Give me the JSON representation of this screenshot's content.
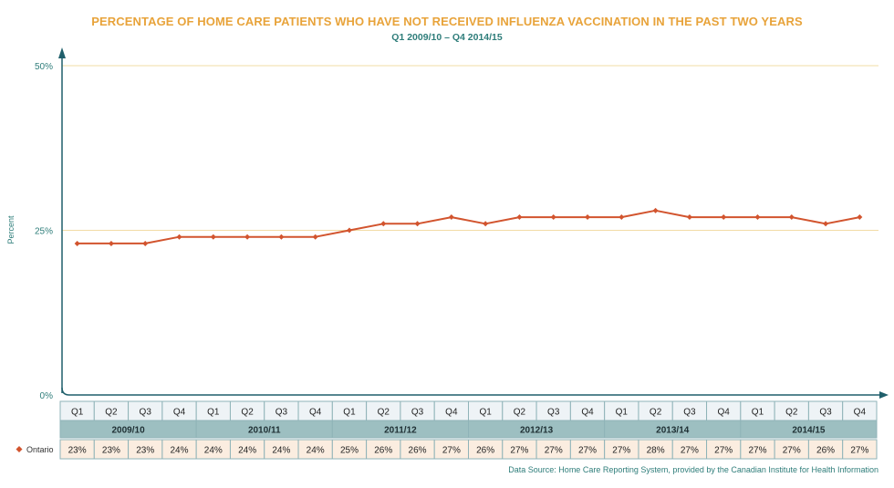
{
  "title": "PERCENTAGE OF HOME CARE PATIENTS WHO HAVE NOT RECEIVED INFLUENZA VACCINATION IN THE PAST TWO YEARS",
  "subtitle": "Q1 2009/10 – Q4 2014/15",
  "source": "Data Source: Home Care Reporting System, provided by the Canadian Institute for Health Information",
  "colors": {
    "title": "#E8A33A",
    "accent": "#2E7D7A",
    "series": "#D2542E",
    "gridline": "#F2DCA6",
    "axis": "#1F5F6B",
    "year_row_bg": "#9DBFC1",
    "value_row_bg": "#FBEDE0",
    "quarter_row_bg": "#EEF3F6"
  },
  "chart_data": {
    "type": "line",
    "title": "PERCENTAGE OF HOME CARE PATIENTS WHO HAVE NOT RECEIVED INFLUENZA VACCINATION IN THE PAST TWO YEARS",
    "subtitle": "Q1 2009/10 – Q4 2014/15",
    "ylabel": "Percent",
    "xlabel": "",
    "ylim": [
      0,
      50
    ],
    "yticks": [
      "0%",
      "25%",
      "50%"
    ],
    "ytick_values": [
      0,
      25,
      50
    ],
    "grid": true,
    "years": [
      "2009/10",
      "2010/11",
      "2011/12",
      "2012/13",
      "2013/14",
      "2014/15"
    ],
    "quarters": [
      "Q1",
      "Q2",
      "Q3",
      "Q4"
    ],
    "series": [
      {
        "name": "Ontario",
        "values": [
          23,
          23,
          23,
          24,
          24,
          24,
          24,
          24,
          25,
          26,
          26,
          27,
          26,
          27,
          27,
          27,
          27,
          28,
          27,
          27,
          27,
          27,
          26,
          27
        ],
        "labels": [
          "23%",
          "23%",
          "23%",
          "24%",
          "24%",
          "24%",
          "24%",
          "24%",
          "25%",
          "26%",
          "26%",
          "27%",
          "26%",
          "27%",
          "27%",
          "27%",
          "27%",
          "28%",
          "27%",
          "27%",
          "27%",
          "27%",
          "26%",
          "27%"
        ]
      }
    ]
  }
}
